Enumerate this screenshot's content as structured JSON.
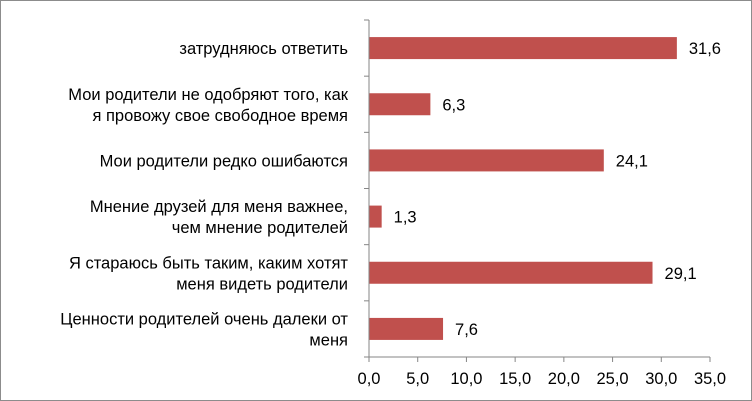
{
  "chart_data": {
    "type": "bar",
    "orientation": "horizontal",
    "categories": [
      [
        "затрудняюсь ответить"
      ],
      [
        "Мои родители не одобряют того, как",
        "я провожу свое свободное время"
      ],
      [
        "Мои родители редко ошибаются"
      ],
      [
        "Мнение друзей для меня важнее,",
        "чем мнение родителей"
      ],
      [
        "Я стараюсь быть таким, каким хотят",
        "меня видеть родители"
      ],
      [
        "Ценности родителей очень далеки от",
        "меня"
      ]
    ],
    "values": [
      31.6,
      6.3,
      24.1,
      1.3,
      29.1,
      7.6
    ],
    "value_labels": [
      "31,6",
      "6,3",
      "24,1",
      "1,3",
      "29,1",
      "7,6"
    ],
    "xlim": [
      0,
      35
    ],
    "xticks": [
      0,
      5,
      10,
      15,
      20,
      25,
      30,
      35
    ],
    "xtick_labels": [
      "0,0",
      "5,0",
      "10,0",
      "15,0",
      "20,0",
      "25,0",
      "30,0",
      "35,0"
    ],
    "bar_color": "#c0504d",
    "axis_color": "#868686",
    "grid": false,
    "legend": "none"
  }
}
